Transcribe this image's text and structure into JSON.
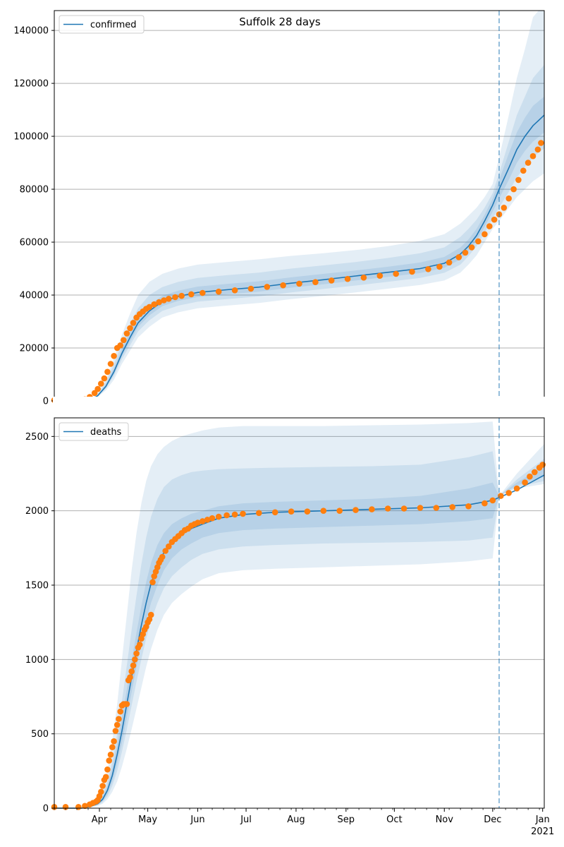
{
  "title": "Suffolk 28 days",
  "colors": {
    "line": "#1f77b4",
    "observed": "#ff7f0e",
    "band": "#1f77b4",
    "grid": "#b0b0b0",
    "forecast_marker": "#1f77b4"
  },
  "x_axis": {
    "month_labels": [
      {
        "label": "Apr",
        "day": 61
      },
      {
        "label": "May",
        "day": 91
      },
      {
        "label": "Jun",
        "day": 122
      },
      {
        "label": "Jul",
        "day": 152
      },
      {
        "label": "Aug",
        "day": 183
      },
      {
        "label": "Sep",
        "day": 214
      },
      {
        "label": "Oct",
        "day": 244
      },
      {
        "label": "Nov",
        "day": 275
      },
      {
        "label": "Dec",
        "day": 305
      },
      {
        "label": "Jan",
        "day": 336
      }
    ],
    "year_label": "2021",
    "range_days": [
      33,
      337
    ],
    "forecast_day": 309,
    "date_origin": "2020-01-01"
  },
  "chart_data": [
    {
      "type": "line",
      "legend": "confirmed",
      "legend_position": "top-left",
      "grid": "horizontal",
      "ylim": [
        0,
        147500
      ],
      "yticks": [
        0,
        20000,
        40000,
        60000,
        80000,
        100000,
        120000,
        140000
      ],
      "model": {
        "x": [
          33,
          55,
          60,
          65,
          70,
          75,
          80,
          85,
          92,
          100,
          110,
          122,
          140,
          160,
          180,
          200,
          220,
          240,
          260,
          275,
          285,
          290,
          295,
          300,
          305,
          309,
          315,
          320,
          325,
          330,
          337
        ],
        "y": [
          0,
          0,
          2000,
          5500,
          11000,
          18000,
          24000,
          29500,
          34000,
          37500,
          39500,
          41000,
          42000,
          43000,
          44500,
          45800,
          47200,
          48600,
          50000,
          52000,
          55500,
          58500,
          62500,
          68000,
          74000,
          80000,
          88000,
          95000,
          100000,
          104000,
          108000
        ]
      },
      "bands": [
        {
          "x": [
            33,
            55,
            60,
            65,
            70,
            75,
            80,
            85,
            92,
            100,
            110,
            122,
            140,
            160,
            180,
            200,
            220,
            240,
            260,
            275,
            285,
            290,
            295,
            300,
            305,
            309,
            315,
            320,
            325,
            330,
            337
          ],
          "lo": [
            0,
            0,
            1500,
            4000,
            8000,
            14000,
            19000,
            24000,
            28000,
            31500,
            33500,
            35000,
            36000,
            37000,
            38500,
            39700,
            41000,
            42400,
            43800,
            45500,
            48500,
            51500,
            55000,
            60000,
            65000,
            68000,
            73000,
            77000,
            80000,
            83000,
            86000
          ],
          "hi": [
            0,
            0,
            3000,
            8000,
            16000,
            25000,
            33000,
            40000,
            45000,
            48000,
            50000,
            51500,
            52500,
            53500,
            54800,
            55800,
            57000,
            58500,
            60500,
            63000,
            67000,
            70000,
            73000,
            77000,
            82000,
            92000,
            108000,
            122000,
            133000,
            145000,
            150000
          ]
        },
        {
          "x": [
            33,
            55,
            60,
            65,
            70,
            75,
            80,
            85,
            92,
            100,
            110,
            122,
            140,
            160,
            180,
            200,
            220,
            240,
            260,
            275,
            285,
            290,
            295,
            300,
            305,
            309,
            315,
            320,
            325,
            330,
            337
          ],
          "lo": [
            0,
            0,
            1700,
            4700,
            9400,
            15800,
            21000,
            26300,
            30500,
            34000,
            36000,
            37500,
            38500,
            39500,
            41000,
            42300,
            43600,
            45000,
            46500,
            48400,
            51500,
            54700,
            58500,
            63500,
            69000,
            73000,
            79000,
            84500,
            88500,
            92000,
            95500
          ],
          "hi": [
            0,
            0,
            2600,
            7000,
            14000,
            22000,
            29000,
            35000,
            40000,
            43000,
            45000,
            46500,
            47500,
            48500,
            50000,
            51200,
            52500,
            54000,
            55800,
            58000,
            62000,
            65000,
            68500,
            73000,
            78500,
            86000,
            98000,
            108000,
            115000,
            122000,
            127000
          ]
        },
        {
          "x": [
            33,
            55,
            60,
            65,
            70,
            75,
            80,
            85,
            92,
            100,
            110,
            122,
            140,
            160,
            180,
            200,
            220,
            240,
            260,
            275,
            285,
            290,
            295,
            300,
            305,
            309,
            315,
            320,
            325,
            330,
            337
          ],
          "lo": [
            0,
            0,
            1850,
            5100,
            10200,
            16900,
            22500,
            28000,
            32300,
            35800,
            37800,
            39300,
            40300,
            41300,
            42800,
            44100,
            45500,
            46900,
            48300,
            50300,
            53500,
            56600,
            60500,
            65800,
            71500,
            76500,
            83500,
            90000,
            94500,
            98000,
            101500
          ],
          "hi": [
            0,
            0,
            2300,
            6200,
            12300,
            19800,
            26300,
            32000,
            36300,
            39700,
            41700,
            43200,
            44200,
            45200,
            46700,
            48000,
            49300,
            50700,
            52300,
            54400,
            58000,
            61000,
            65000,
            70300,
            76500,
            83500,
            93500,
            101500,
            107000,
            111500,
            115000
          ]
        }
      ],
      "observed": {
        "x": [
          33,
          40,
          48,
          52,
          55,
          58,
          60,
          62,
          64,
          66,
          68,
          70,
          72,
          74,
          76,
          78,
          80,
          82,
          84,
          86,
          88,
          90,
          92,
          95,
          98,
          101,
          104,
          108,
          112,
          118,
          125,
          135,
          145,
          155,
          165,
          175,
          185,
          195,
          205,
          215,
          225,
          235,
          245,
          255,
          265,
          272,
          278,
          284,
          288,
          292,
          296,
          300,
          303,
          306,
          309,
          312,
          315,
          318,
          321,
          324,
          327,
          330,
          333,
          335
        ],
        "y": [
          300,
          300,
          300,
          600,
          1500,
          3000,
          4500,
          6500,
          8500,
          11000,
          14000,
          17000,
          20000,
          21000,
          23000,
          25500,
          27500,
          29500,
          31500,
          32800,
          33800,
          34800,
          35500,
          36500,
          37300,
          38000,
          38600,
          39200,
          39700,
          40300,
          40800,
          41300,
          41800,
          42400,
          43100,
          43700,
          44300,
          44900,
          45500,
          46100,
          46600,
          47300,
          48000,
          48800,
          49800,
          50700,
          52300,
          54300,
          56000,
          58000,
          60300,
          63000,
          66000,
          68500,
          70500,
          73000,
          76500,
          80000,
          83500,
          87000,
          90000,
          92500,
          95000,
          97500
        ]
      }
    },
    {
      "type": "line",
      "legend": "deaths",
      "legend_position": "top-left",
      "grid": "horizontal",
      "ylim": [
        0,
        2625
      ],
      "yticks": [
        0,
        500,
        1000,
        1500,
        2000,
        2500
      ],
      "model": {
        "x": [
          33,
          50,
          55,
          60,
          63,
          66,
          69,
          72,
          75,
          78,
          81,
          84,
          87,
          90,
          93,
          97,
          101,
          106,
          112,
          118,
          125,
          135,
          150,
          170,
          200,
          230,
          260,
          290,
          305,
          309,
          320,
          337
        ],
        "y": [
          0,
          0,
          10,
          30,
          60,
          120,
          220,
          360,
          520,
          700,
          880,
          1060,
          1230,
          1380,
          1510,
          1630,
          1720,
          1790,
          1840,
          1880,
          1910,
          1950,
          1975,
          1990,
          2000,
          2010,
          2020,
          2040,
          2070,
          2090,
          2140,
          2240
        ]
      },
      "bands": [
        {
          "x": [
            33,
            50,
            55,
            60,
            63,
            66,
            69,
            72,
            75,
            78,
            81,
            84,
            87,
            90,
            93,
            97,
            101,
            106,
            112,
            118,
            125,
            135,
            150,
            170,
            200,
            230,
            260,
            290,
            305,
            309,
            320,
            337
          ],
          "lo": [
            0,
            0,
            5,
            15,
            30,
            60,
            110,
            180,
            280,
            400,
            530,
            670,
            810,
            950,
            1070,
            1200,
            1300,
            1380,
            1440,
            1490,
            1540,
            1580,
            1600,
            1610,
            1620,
            1630,
            1640,
            1660,
            1680,
            2100,
            2150,
            2180
          ],
          "hi": [
            0,
            0,
            15,
            50,
            120,
            250,
            450,
            700,
            1000,
            1300,
            1600,
            1850,
            2050,
            2200,
            2300,
            2380,
            2430,
            2470,
            2500,
            2520,
            2540,
            2560,
            2570,
            2570,
            2570,
            2575,
            2580,
            2590,
            2600,
            2100,
            2250,
            2450
          ]
        },
        {
          "x": [
            33,
            50,
            55,
            60,
            63,
            66,
            69,
            72,
            75,
            78,
            81,
            84,
            87,
            90,
            93,
            97,
            101,
            106,
            112,
            118,
            125,
            135,
            150,
            170,
            200,
            230,
            260,
            290,
            305,
            309,
            320,
            337
          ],
          "lo": [
            0,
            0,
            7,
            20,
            40,
            80,
            150,
            250,
            380,
            530,
            690,
            850,
            1000,
            1140,
            1260,
            1380,
            1480,
            1560,
            1620,
            1670,
            1710,
            1740,
            1760,
            1770,
            1780,
            1785,
            1790,
            1800,
            1820,
            2100,
            2160,
            2200
          ],
          "hi": [
            0,
            0,
            13,
            40,
            90,
            180,
            320,
            500,
            720,
            960,
            1200,
            1430,
            1640,
            1820,
            1960,
            2080,
            2160,
            2210,
            2240,
            2260,
            2270,
            2280,
            2285,
            2290,
            2295,
            2300,
            2310,
            2360,
            2400,
            2100,
            2210,
            2350
          ]
        },
        {
          "x": [
            33,
            50,
            55,
            60,
            63,
            66,
            69,
            72,
            75,
            78,
            81,
            84,
            87,
            90,
            93,
            97,
            101,
            106,
            112,
            118,
            125,
            135,
            150,
            170,
            200,
            230,
            260,
            290,
            305,
            309,
            320,
            337
          ],
          "lo": [
            0,
            0,
            8,
            24,
            48,
            96,
            180,
            300,
            440,
            610,
            780,
            950,
            1110,
            1260,
            1380,
            1500,
            1600,
            1680,
            1740,
            1780,
            1820,
            1850,
            1870,
            1880,
            1890,
            1900,
            1910,
            1930,
            1950,
            2100,
            2170,
            2230
          ],
          "hi": [
            0,
            0,
            12,
            36,
            75,
            150,
            270,
            430,
            610,
            800,
            990,
            1180,
            1360,
            1520,
            1650,
            1770,
            1850,
            1910,
            1950,
            1980,
            2000,
            2030,
            2050,
            2060,
            2070,
            2080,
            2100,
            2150,
            2190,
            2100,
            2190,
            2300
          ]
        }
      ],
      "observed": {
        "x": [
          33,
          40,
          48,
          52,
          55,
          57,
          59,
          60,
          61,
          62,
          63,
          64,
          65,
          66,
          67,
          68,
          69,
          70,
          71,
          72,
          73,
          74,
          75,
          76,
          77,
          78,
          79,
          80,
          81,
          82,
          83,
          84,
          85,
          86,
          87,
          88,
          89,
          90,
          91,
          92,
          93,
          94,
          95,
          96,
          97,
          98,
          99,
          100,
          102,
          104,
          106,
          108,
          110,
          112,
          114,
          116,
          118,
          120,
          122,
          125,
          128,
          131,
          135,
          140,
          145,
          150,
          160,
          170,
          180,
          190,
          200,
          210,
          220,
          230,
          240,
          250,
          260,
          270,
          280,
          290,
          300,
          305,
          310,
          315,
          320,
          325,
          328,
          331,
          334,
          336
        ],
        "y": [
          8,
          8,
          8,
          15,
          25,
          35,
          45,
          55,
          80,
          110,
          150,
          190,
          210,
          260,
          320,
          360,
          410,
          450,
          520,
          560,
          600,
          650,
          690,
          700,
          700,
          700,
          860,
          880,
          920,
          960,
          1000,
          1040,
          1080,
          1100,
          1140,
          1170,
          1200,
          1220,
          1250,
          1270,
          1300,
          1520,
          1560,
          1590,
          1620,
          1650,
          1670,
          1690,
          1730,
          1760,
          1790,
          1810,
          1830,
          1850,
          1870,
          1880,
          1900,
          1910,
          1920,
          1930,
          1940,
          1950,
          1960,
          1970,
          1975,
          1980,
          1985,
          1990,
          1995,
          1995,
          2000,
          2000,
          2005,
          2010,
          2015,
          2015,
          2020,
          2020,
          2025,
          2030,
          2050,
          2070,
          2100,
          2120,
          2150,
          2190,
          2230,
          2260,
          2290,
          2310
        ]
      }
    }
  ]
}
